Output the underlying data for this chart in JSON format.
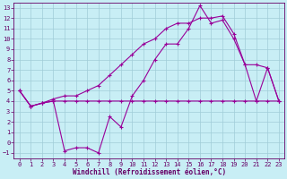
{
  "xlabel": "Windchill (Refroidissement éolien,°C)",
  "bg_color": "#c8eef5",
  "grid_color": "#a0ccd8",
  "line_color": "#990099",
  "xlim": [
    -0.5,
    23.5
  ],
  "ylim": [
    -1.5,
    13.5
  ],
  "xticks": [
    0,
    1,
    2,
    3,
    4,
    5,
    6,
    7,
    8,
    9,
    10,
    11,
    12,
    13,
    14,
    15,
    16,
    17,
    18,
    19,
    20,
    21,
    22,
    23
  ],
  "yticks": [
    -1,
    0,
    1,
    2,
    3,
    4,
    5,
    6,
    7,
    8,
    9,
    10,
    11,
    12,
    13
  ],
  "line_flat_x": [
    0,
    1,
    2,
    3,
    4,
    5,
    6,
    7,
    8,
    9,
    10,
    11,
    12,
    13,
    14,
    15,
    16,
    17,
    18,
    19,
    20,
    21,
    22,
    23
  ],
  "line_flat_y": [
    5,
    3.5,
    3.8,
    4.0,
    4.0,
    4.0,
    4.0,
    4.0,
    4.0,
    4.0,
    4.0,
    4.0,
    4.0,
    4.0,
    4.0,
    4.0,
    4.0,
    4.0,
    4.0,
    4.0,
    4.0,
    4.0,
    4.0,
    4.0
  ],
  "line_zigzag_x": [
    0,
    1,
    2,
    3,
    4,
    5,
    6,
    7,
    8,
    9,
    10,
    11,
    12,
    13,
    14,
    15,
    16,
    17,
    18,
    19,
    20,
    21,
    22,
    23
  ],
  "line_zigzag_y": [
    5,
    3.5,
    3.8,
    4.0,
    -0.8,
    -0.5,
    -0.5,
    -1.0,
    2.5,
    1.5,
    4.5,
    6.0,
    8.0,
    9.5,
    9.5,
    11.0,
    13.2,
    11.5,
    11.8,
    10.0,
    7.5,
    4.0,
    7.2,
    4.0
  ],
  "line_rise_x": [
    0,
    1,
    2,
    3,
    4,
    5,
    6,
    7,
    8,
    9,
    10,
    11,
    12,
    13,
    14,
    15,
    16,
    17,
    18,
    19,
    20,
    21,
    22,
    23
  ],
  "line_rise_y": [
    5,
    3.5,
    3.8,
    4.2,
    4.5,
    4.5,
    5.0,
    5.5,
    6.5,
    7.5,
    8.5,
    9.5,
    10.0,
    11.0,
    11.5,
    11.5,
    12.0,
    12.0,
    12.2,
    10.5,
    7.5,
    7.5,
    7.2,
    4.0
  ],
  "tick_fontsize": 5,
  "xlabel_fontsize": 5.5,
  "tick_color": "#660066",
  "spine_color": "#660066"
}
